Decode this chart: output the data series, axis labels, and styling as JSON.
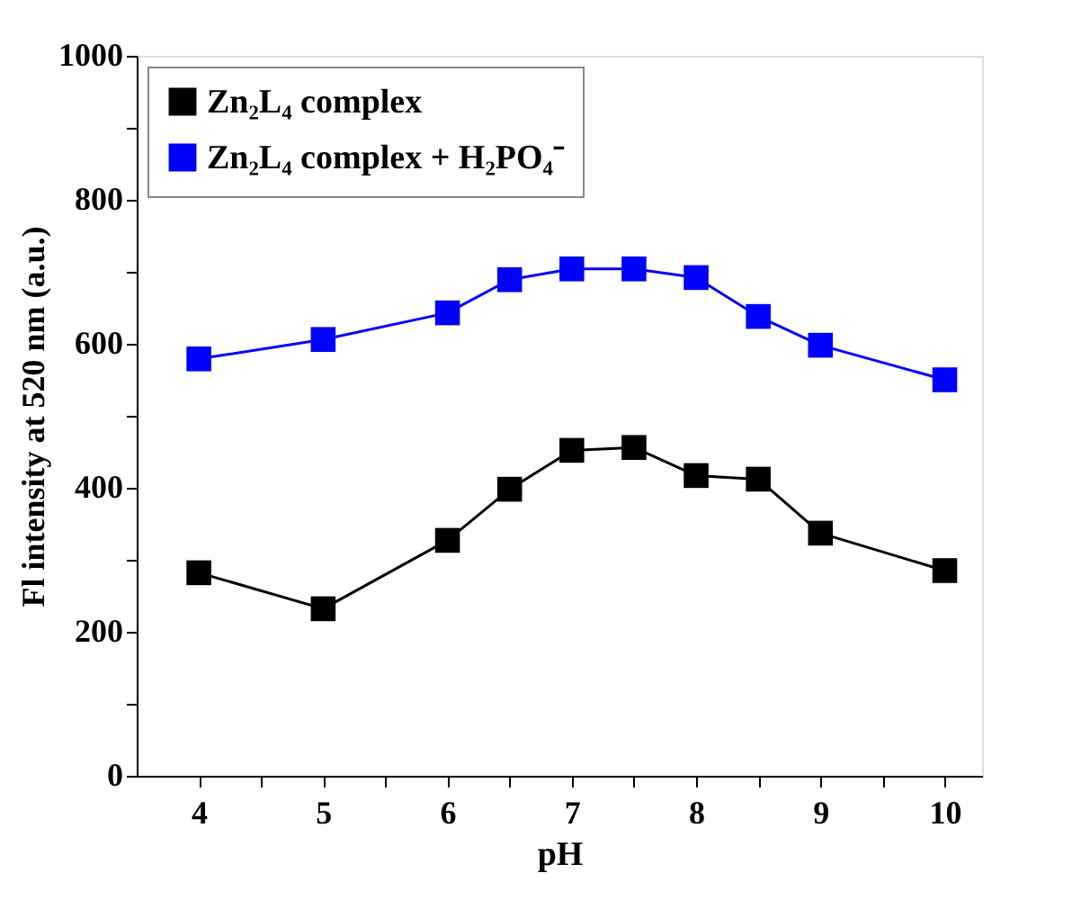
{
  "chart_data": {
    "type": "line",
    "xlabel": "pH",
    "ylabel": "Fl intensity at 520 nm (a.u.)",
    "x": [
      4,
      5,
      6,
      6.5,
      7,
      7.5,
      8,
      8.5,
      9,
      10
    ],
    "series": [
      {
        "name": "Zn₂L₄ complex",
        "color": "#000000",
        "values": [
          282,
          232,
          327,
          398,
          452,
          456,
          417,
          412,
          337,
          285
        ]
      },
      {
        "name": "Zn₂L₄ complex + H₂PO₄⁻",
        "color": "#0000ff",
        "values": [
          579,
          606,
          643,
          689,
          704,
          704,
          692,
          638,
          598,
          550
        ]
      }
    ],
    "xlim": [
      3.5,
      10.3
    ],
    "xticks": [
      4,
      {
        "value": 4.5,
        "label": null
      },
      5,
      {
        "value": 5.5,
        "label": null
      },
      6,
      {
        "value": 6.5,
        "label": null
      },
      7,
      {
        "value": 7.5,
        "label": null
      },
      8,
      {
        "value": 8.5,
        "label": null
      },
      9,
      {
        "value": 9.5,
        "label": null
      },
      10
    ],
    "ylim": [
      0,
      1000
    ],
    "yticks": [
      0,
      {
        "value": 100,
        "label": null
      },
      200,
      {
        "value": 300,
        "label": null
      },
      400,
      {
        "value": 500,
        "label": null
      },
      600,
      {
        "value": 700,
        "label": null
      },
      800,
      {
        "value": 900,
        "label": null
      },
      1000
    ],
    "marker": "square",
    "line_style": "solid",
    "legend": "top left",
    "grid": false
  }
}
